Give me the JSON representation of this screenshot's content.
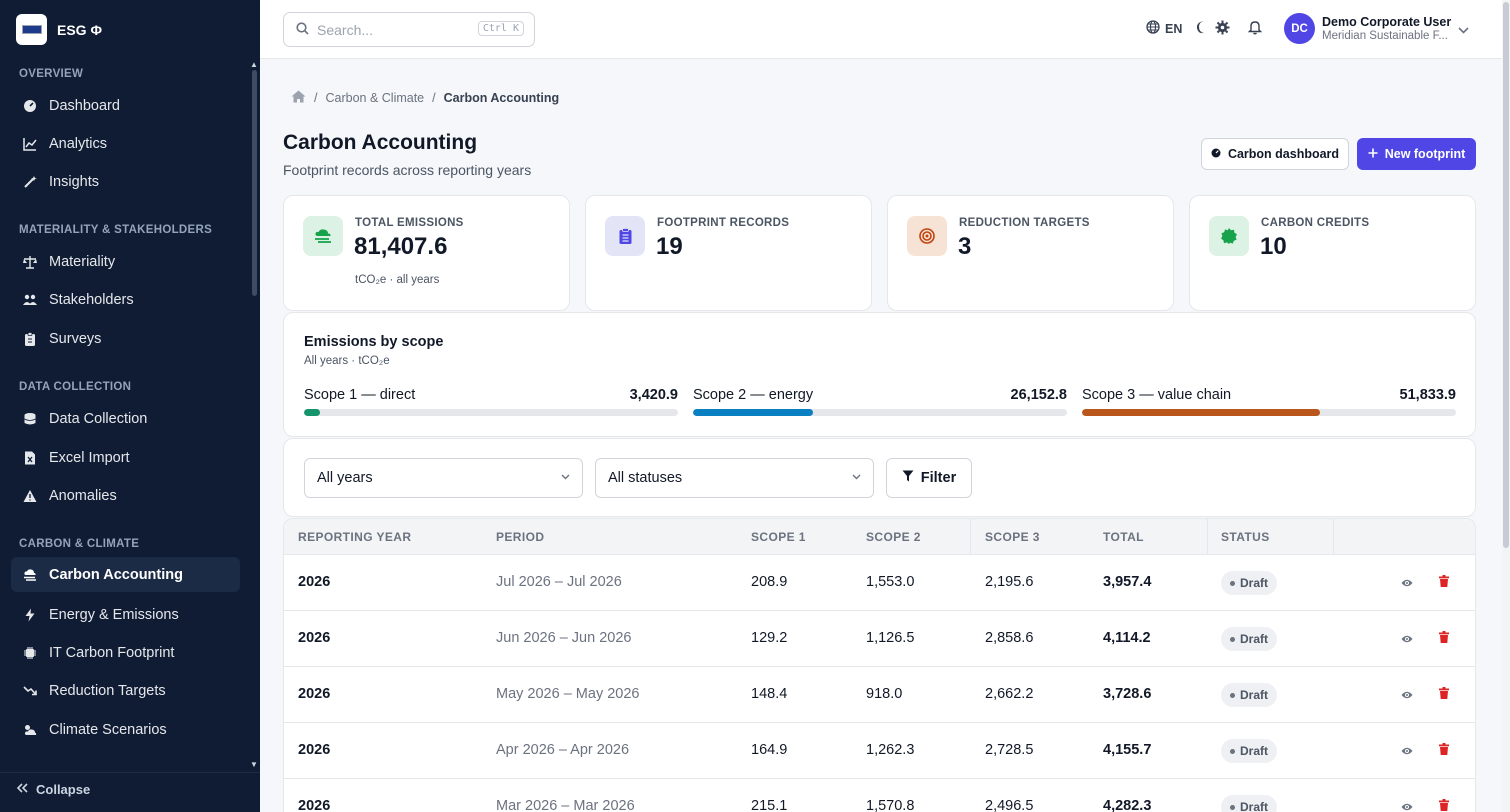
{
  "app": {
    "name": "ESG Φ"
  },
  "sidebar": {
    "sections": [
      {
        "title": "OVERVIEW",
        "items": [
          {
            "label": "Dashboard",
            "icon": "gauge-icon"
          },
          {
            "label": "Analytics",
            "icon": "chart-line-icon"
          },
          {
            "label": "Insights",
            "icon": "wand-icon"
          }
        ]
      },
      {
        "title": "MATERIALITY & STAKEHOLDERS",
        "items": [
          {
            "label": "Materiality",
            "icon": "scale-icon"
          },
          {
            "label": "Stakeholders",
            "icon": "users-icon"
          },
          {
            "label": "Surveys",
            "icon": "clipboard-icon"
          }
        ]
      },
      {
        "title": "DATA COLLECTION",
        "items": [
          {
            "label": "Data Collection",
            "icon": "database-icon"
          },
          {
            "label": "Excel Import",
            "icon": "file-excel-icon"
          },
          {
            "label": "Anomalies",
            "icon": "warning-icon"
          }
        ]
      },
      {
        "title": "CARBON & CLIMATE",
        "items": [
          {
            "label": "Carbon Accounting",
            "icon": "cloud-smog-icon",
            "active": true
          },
          {
            "label": "Energy & Emissions",
            "icon": "bolt-icon"
          },
          {
            "label": "IT Carbon Footprint",
            "icon": "chip-icon"
          },
          {
            "label": "Reduction Targets",
            "icon": "trend-down-icon"
          },
          {
            "label": "Climate Scenarios",
            "icon": "cloud-sun-icon"
          }
        ]
      }
    ],
    "collapse_label": "Collapse"
  },
  "topbar": {
    "search_placeholder": "Search...",
    "search_shortcut": "Ctrl K",
    "language": "EN",
    "user_initials": "DC",
    "user_name": "Demo Corporate User",
    "user_org": "Meridian Sustainable F..."
  },
  "breadcrumb": {
    "parent": "Carbon & Climate",
    "current": "Carbon Accounting"
  },
  "page": {
    "title": "Carbon Accounting",
    "subtitle": "Footprint records across reporting years",
    "btn_dashboard": "Carbon dashboard",
    "btn_new": "New footprint"
  },
  "stats": [
    {
      "label": "TOTAL EMISSIONS",
      "value": "81,407.6",
      "unit": "tCO₂e · all years",
      "color": "#16a34a",
      "bg": "#dcf2e4"
    },
    {
      "label": "FOOTPRINT RECORDS",
      "value": "19",
      "unit": "",
      "color": "#4f46e5",
      "bg": "#e4e4f7"
    },
    {
      "label": "REDUCTION TARGETS",
      "value": "3",
      "unit": "",
      "color": "#c2410c",
      "bg": "#f6e3d6"
    },
    {
      "label": "CARBON CREDITS",
      "value": "10",
      "unit": "",
      "color": "#16a34a",
      "bg": "#dcf2e4"
    }
  ],
  "scopes": {
    "title": "Emissions by scope",
    "subtitle": "All years · tCO₂e",
    "items": [
      {
        "name": "Scope 1 — direct",
        "value": "3,420.9",
        "fraction": 0.042,
        "color": "#15946b"
      },
      {
        "name": "Scope 2 — energy",
        "value": "26,152.8",
        "fraction": 0.321,
        "color": "#0a80c3"
      },
      {
        "name": "Scope 3 — value chain",
        "value": "51,833.9",
        "fraction": 0.637,
        "color": "#b8561c"
      }
    ]
  },
  "filters": {
    "year": "All years",
    "status": "All statuses",
    "button": "Filter"
  },
  "table": {
    "headers": [
      "REPORTING YEAR",
      "PERIOD",
      "SCOPE 1",
      "SCOPE 2",
      "SCOPE 3",
      "TOTAL",
      "STATUS"
    ],
    "rows": [
      {
        "year": "2026",
        "period": "Jul 2026 – Jul 2026",
        "s1": "208.9",
        "s2": "1,553.0",
        "s3": "2,195.6",
        "total": "3,957.4",
        "status": "Draft"
      },
      {
        "year": "2026",
        "period": "Jun 2026 – Jun 2026",
        "s1": "129.2",
        "s2": "1,126.5",
        "s3": "2,858.6",
        "total": "4,114.2",
        "status": "Draft"
      },
      {
        "year": "2026",
        "period": "May 2026 – May 2026",
        "s1": "148.4",
        "s2": "918.0",
        "s3": "2,662.2",
        "total": "3,728.6",
        "status": "Draft"
      },
      {
        "year": "2026",
        "period": "Apr 2026 – Apr 2026",
        "s1": "164.9",
        "s2": "1,262.3",
        "s3": "2,728.5",
        "total": "4,155.7",
        "status": "Draft"
      },
      {
        "year": "2026",
        "period": "Mar 2026 – Mar 2026",
        "s1": "215.1",
        "s2": "1,570.8",
        "s3": "2,496.5",
        "total": "4,282.3",
        "status": "Draft"
      }
    ]
  }
}
